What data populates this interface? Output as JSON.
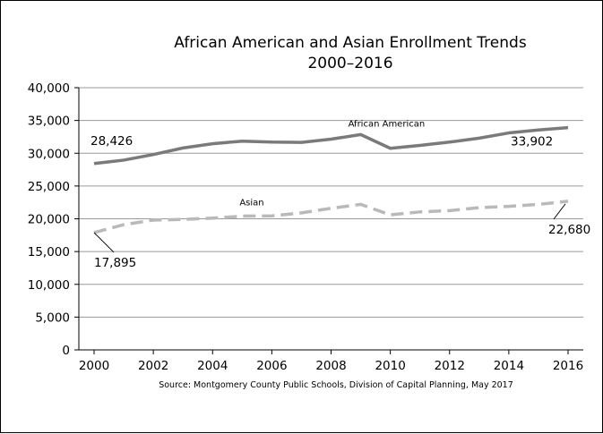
{
  "chart_data": {
    "type": "line",
    "title": "African American and Asian Enrollment Trends",
    "subtitle": "2000–2016",
    "source": "Source: Montgomery County Public Schools, Division of Capital Planning, May 2017",
    "x": [
      2000,
      2001,
      2002,
      2003,
      2004,
      2005,
      2006,
      2007,
      2008,
      2009,
      2010,
      2011,
      2012,
      2013,
      2014,
      2015,
      2016
    ],
    "x_ticks": [
      "2000",
      "2002",
      "2004",
      "2006",
      "2008",
      "2010",
      "2012",
      "2014",
      "2016"
    ],
    "y_ticks": [
      "0",
      "5,000",
      "10,000",
      "15,000",
      "20,000",
      "25,000",
      "30,000",
      "35,000",
      "40,000"
    ],
    "ylim": [
      0,
      40000
    ],
    "xlim": [
      2000,
      2016
    ],
    "grid": true,
    "series": [
      {
        "name": "African American",
        "color": "#7a7a7a",
        "style": "solid",
        "values": [
          28426,
          28950,
          29800,
          30800,
          31450,
          31850,
          31700,
          31650,
          32150,
          32850,
          30750,
          31200,
          31700,
          32300,
          33100,
          33550,
          33902
        ]
      },
      {
        "name": "Asian",
        "color": "#b9b9b9",
        "style": "dashed",
        "values": [
          17895,
          19100,
          19800,
          19900,
          20100,
          20400,
          20450,
          20900,
          21600,
          22200,
          20600,
          21050,
          21250,
          21700,
          21900,
          22200,
          22680
        ]
      }
    ],
    "annotations": [
      {
        "text": "28,426",
        "series": 0,
        "x": 2000
      },
      {
        "text": "33,902",
        "series": 0,
        "x": 2016
      },
      {
        "text": "17,895",
        "series": 1,
        "x": 2000
      },
      {
        "text": "22,680",
        "series": 1,
        "x": 2016
      }
    ]
  }
}
